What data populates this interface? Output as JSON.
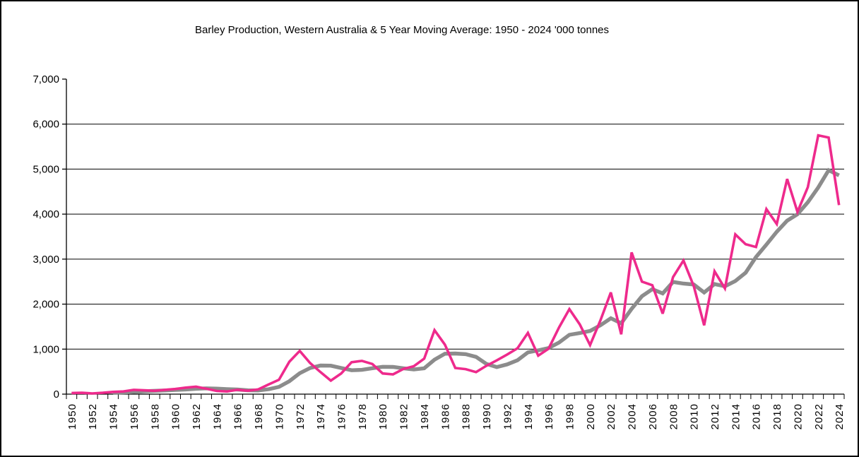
{
  "window": {
    "background": "#ffffff",
    "frame_color": "#000000"
  },
  "chart_data": {
    "type": "line",
    "title": "Barley Production, Western Australia & 5 Year Moving Average: 1950 - 2024 '000 tonnes",
    "xlabel": "",
    "ylabel": "",
    "ylim": [
      0,
      7000
    ],
    "ytick_interval": 1000,
    "grid": "horizontal",
    "legend": "none",
    "axis_color": "#000000",
    "x": [
      1950,
      1951,
      1952,
      1953,
      1954,
      1955,
      1956,
      1957,
      1958,
      1959,
      1960,
      1961,
      1962,
      1963,
      1964,
      1965,
      1966,
      1967,
      1968,
      1969,
      1970,
      1971,
      1972,
      1973,
      1974,
      1975,
      1976,
      1977,
      1978,
      1979,
      1980,
      1981,
      1982,
      1983,
      1984,
      1985,
      1986,
      1987,
      1988,
      1989,
      1990,
      1991,
      1992,
      1993,
      1994,
      1995,
      1996,
      1997,
      1998,
      1999,
      2000,
      2001,
      2002,
      2003,
      2004,
      2005,
      2006,
      2007,
      2008,
      2009,
      2010,
      2011,
      2012,
      2013,
      2014,
      2015,
      2016,
      2017,
      2018,
      2019,
      2020,
      2021,
      2022,
      2023,
      2024
    ],
    "ytick_labels": [
      "0",
      "1,000",
      "2,000",
      "3,000",
      "4,000",
      "5,000",
      "6,000",
      "7,000"
    ],
    "xtick_labels": [
      "1950",
      "1952",
      "1954",
      "1956",
      "1958",
      "1960",
      "1962",
      "1964",
      "1966",
      "1968",
      "1970",
      "1972",
      "1974",
      "1976",
      "1978",
      "1980",
      "1982",
      "1984",
      "1986",
      "1988",
      "1990",
      "1992",
      "1994",
      "1996",
      "1998",
      "2000",
      "2002",
      "2004",
      "2006",
      "2008",
      "2010",
      "2012",
      "2014",
      "2016",
      "2018",
      "2020",
      "2022",
      "2024"
    ],
    "series": [
      {
        "name": "Barley Production",
        "color": "#EE2A8C",
        "stroke_width": 3.6,
        "values": [
          25,
          30,
          15,
          30,
          50,
          60,
          95,
          85,
          75,
          95,
          115,
          145,
          165,
          120,
          70,
          60,
          95,
          75,
          105,
          215,
          320,
          720,
          960,
          690,
          490,
          300,
          460,
          710,
          740,
          670,
          460,
          440,
          560,
          620,
          790,
          1420,
          1100,
          580,
          555,
          490,
          630,
          750,
          880,
          1020,
          1360,
          855,
          1010,
          1480,
          1890,
          1550,
          1090,
          1640,
          2260,
          1330,
          3150,
          2500,
          2420,
          1790,
          2600,
          2970,
          2400,
          1530,
          2730,
          2350,
          3550,
          3330,
          3270,
          4110,
          3780,
          4780,
          4050,
          4600,
          5750,
          5700,
          4200
        ]
      },
      {
        "name": "5 Year Moving Average",
        "color": "#8C8C8C",
        "stroke_width": 5.4,
        "values": [
          null,
          null,
          null,
          null,
          30,
          37,
          50,
          64,
          73,
          82,
          93,
          103,
          119,
          128,
          123,
          112,
          102,
          84,
          81,
          110,
          162,
          287,
          464,
          581,
          636,
          632,
          580,
          530,
          540,
          576,
          608,
          604,
          574,
          550,
          574,
          766,
          898,
          902,
          889,
          829,
          671,
          601,
          661,
          754,
          928,
          973,
          1025,
          1145,
          1319,
          1357,
          1404,
          1530,
          1686,
          1574,
          1894,
          2176,
          2332,
          2238,
          2492,
          2456,
          2436,
          2258,
          2446,
          2396,
          2512,
          2698,
          3046,
          3322,
          3608,
          3854,
          3998,
          4264,
          4592,
          4976,
          4860
        ]
      }
    ]
  }
}
